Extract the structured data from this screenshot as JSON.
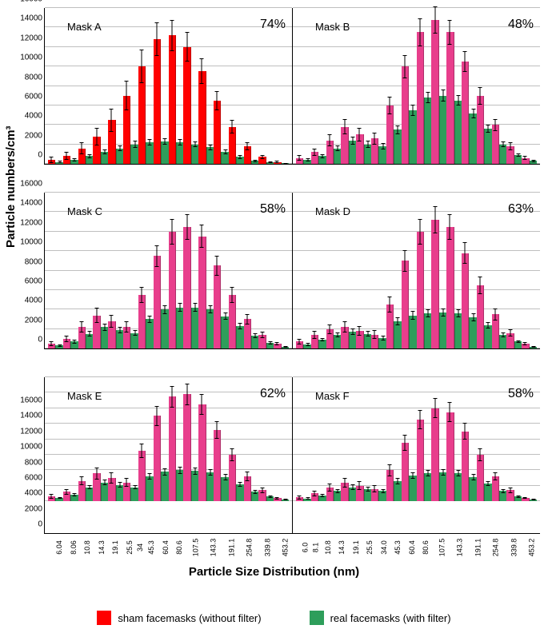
{
  "y_label": "Particle numbers/cm³",
  "x_label": "Particle Size Distribution (nm)",
  "ylim": [
    0,
    16000
  ],
  "ytick_step": 2000,
  "x_categories_A": [
    "6.04",
    "8.06",
    "10.8",
    "14.3",
    "19.1",
    "25.5",
    "34",
    "45.3",
    "60.4",
    "80.6",
    "107.5",
    "143.3",
    "191.1",
    "254.8",
    "339.8",
    "453.2"
  ],
  "x_categories_B": [
    "6.0",
    "8.1",
    "10.8",
    "14.3",
    "19.1",
    "25.5",
    "34.0",
    "45.3",
    "60.4",
    "80.6",
    "107.5",
    "143.3",
    "191.1",
    "254.8",
    "339.8",
    "453.2"
  ],
  "colors": {
    "sham_A": "#ff0000",
    "sham_other": "#e83e8c",
    "real": "#2e9e5b",
    "grid": "#bfbfbf",
    "error": "#000000",
    "background": "#ffffff"
  },
  "legend": {
    "sham": "sham facemasks (without filter)",
    "real": "real facemasks (with filter)"
  },
  "panels": [
    {
      "title": "Mask A",
      "pct": "74%",
      "sham_color": "#ff0000",
      "sham": [
        400,
        800,
        1600,
        2800,
        4500,
        7000,
        10000,
        12800,
        13200,
        12000,
        9500,
        6500,
        3800,
        1800,
        700,
        200
      ],
      "real": [
        200,
        400,
        800,
        1200,
        1600,
        2000,
        2200,
        2300,
        2200,
        2000,
        1700,
        1200,
        700,
        300,
        150,
        50
      ],
      "err_sham": [
        300,
        400,
        600,
        900,
        1200,
        1500,
        1700,
        1700,
        1600,
        1500,
        1300,
        1000,
        700,
        400,
        200,
        100
      ],
      "err_real": [
        100,
        150,
        200,
        250,
        300,
        350,
        350,
        350,
        350,
        300,
        300,
        250,
        200,
        100,
        80,
        40
      ]
    },
    {
      "title": "Mask B",
      "pct": "48%",
      "sham_color": "#e83e8c",
      "sham": [
        600,
        1200,
        2400,
        3800,
        3000,
        2600,
        6000,
        10000,
        13500,
        14800,
        13500,
        10500,
        7000,
        4000,
        1800,
        600
      ],
      "real": [
        400,
        800,
        1600,
        2400,
        2000,
        1800,
        3500,
        5500,
        6800,
        7000,
        6500,
        5200,
        3600,
        2000,
        900,
        300
      ],
      "err_sham": [
        300,
        400,
        600,
        800,
        700,
        600,
        900,
        1200,
        1400,
        1400,
        1300,
        1100,
        900,
        600,
        400,
        200
      ],
      "err_real": [
        150,
        200,
        300,
        400,
        350,
        300,
        450,
        550,
        600,
        600,
        550,
        500,
        400,
        300,
        200,
        100
      ]
    },
    {
      "title": "Mask C",
      "pct": "58%",
      "sham_color": "#e83e8c",
      "sham": [
        500,
        1000,
        2200,
        3400,
        2800,
        2200,
        5500,
        9500,
        12000,
        12500,
        11500,
        8500,
        5500,
        3000,
        1400,
        500
      ],
      "real": [
        300,
        700,
        1500,
        2200,
        1900,
        1600,
        3000,
        4000,
        4200,
        4200,
        4000,
        3300,
        2300,
        1300,
        600,
        200
      ],
      "err_sham": [
        250,
        350,
        550,
        750,
        650,
        550,
        850,
        1100,
        1300,
        1300,
        1200,
        1000,
        800,
        550,
        350,
        150
      ],
      "err_real": [
        120,
        180,
        280,
        380,
        330,
        280,
        400,
        450,
        450,
        450,
        420,
        380,
        300,
        220,
        150,
        80
      ]
    },
    {
      "title": "Mask D",
      "pct": "63%",
      "sham_color": "#e83e8c",
      "sham": [
        700,
        1400,
        2000,
        2200,
        1800,
        1400,
        4500,
        9000,
        12000,
        13200,
        12500,
        9800,
        6500,
        3500,
        1600,
        500
      ],
      "real": [
        400,
        900,
        1400,
        1700,
        1500,
        1100,
        2800,
        3400,
        3600,
        3700,
        3600,
        3200,
        2400,
        1400,
        700,
        200
      ],
      "err_sham": [
        300,
        400,
        500,
        550,
        500,
        450,
        800,
        1100,
        1300,
        1400,
        1300,
        1100,
        900,
        600,
        400,
        150
      ],
      "err_real": [
        150,
        200,
        280,
        320,
        300,
        250,
        380,
        420,
        430,
        430,
        420,
        380,
        320,
        240,
        160,
        80
      ]
    },
    {
      "title": "Mask E",
      "pct": "62%",
      "sham_color": "#e83e8c",
      "sham": [
        600,
        1200,
        2600,
        3600,
        3000,
        2400,
        6500,
        11000,
        13500,
        13800,
        12500,
        9200,
        6000,
        3200,
        1400,
        400
      ],
      "real": [
        400,
        800,
        1800,
        2400,
        2100,
        1800,
        3200,
        3800,
        4000,
        3900,
        3700,
        3100,
        2200,
        1200,
        600,
        200
      ],
      "err_sham": [
        280,
        380,
        580,
        780,
        680,
        580,
        950,
        1250,
        1400,
        1400,
        1300,
        1100,
        850,
        580,
        350,
        150
      ],
      "err_real": [
        140,
        190,
        300,
        380,
        350,
        300,
        420,
        450,
        460,
        450,
        430,
        390,
        320,
        230,
        150,
        80
      ]
    },
    {
      "title": "Mask F",
      "pct": "58%",
      "sham_color": "#e83e8c",
      "sham": [
        500,
        1000,
        1800,
        2400,
        2000,
        1600,
        4000,
        7500,
        10500,
        12000,
        11500,
        9000,
        6000,
        3200,
        1400,
        400
      ],
      "real": [
        350,
        700,
        1300,
        1800,
        1600,
        1300,
        2600,
        3300,
        3600,
        3700,
        3600,
        3100,
        2300,
        1300,
        600,
        200
      ],
      "err_sham": [
        260,
        360,
        520,
        640,
        580,
        500,
        780,
        1020,
        1220,
        1300,
        1250,
        1080,
        820,
        560,
        340,
        140
      ],
      "err_real": [
        130,
        180,
        270,
        340,
        310,
        270,
        380,
        420,
        440,
        440,
        430,
        390,
        320,
        230,
        150,
        80
      ]
    }
  ]
}
